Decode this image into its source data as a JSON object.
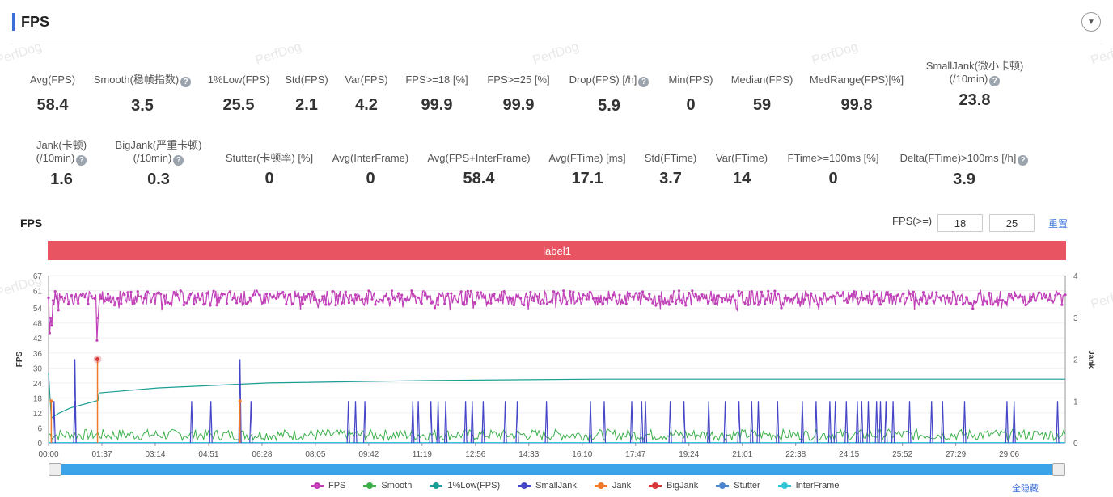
{
  "header": {
    "title": "FPS",
    "watermark": "PerfDog"
  },
  "metrics_row1": [
    {
      "label": "Avg(FPS)",
      "value": "58.4",
      "help": false
    },
    {
      "label": "Smooth(稳帧指数)",
      "value": "3.5",
      "help": true
    },
    {
      "label": "1%Low(FPS)",
      "value": "25.5",
      "help": false
    },
    {
      "label": "Std(FPS)",
      "value": "2.1",
      "help": false
    },
    {
      "label": "Var(FPS)",
      "value": "4.2",
      "help": false
    },
    {
      "label": "FPS>=18 [%]",
      "value": "99.9",
      "help": false
    },
    {
      "label": "FPS>=25 [%]",
      "value": "99.9",
      "help": false
    },
    {
      "label": "Drop(FPS) [/h]",
      "value": "5.9",
      "help": true
    },
    {
      "label": "Min(FPS)",
      "value": "0",
      "help": false
    },
    {
      "label": "Median(FPS)",
      "value": "59",
      "help": false
    },
    {
      "label": "MedRange(FPS)[%]",
      "value": "99.8",
      "help": false
    },
    {
      "label": "SmallJank(微小卡顿)",
      "label2": "(/10min)",
      "value": "23.8",
      "help": true
    }
  ],
  "metrics_row2": [
    {
      "label": "Jank(卡顿)",
      "label2": "(/10min)",
      "value": "1.6",
      "help": true
    },
    {
      "label": "BigJank(严重卡顿)",
      "label2": "(/10min)",
      "value": "0.3",
      "help": true
    },
    {
      "label": "Stutter(卡顿率) [%]",
      "value": "0",
      "help": false
    },
    {
      "label": "Avg(InterFrame)",
      "value": "0",
      "help": false
    },
    {
      "label": "Avg(FPS+InterFrame)",
      "value": "58.4",
      "help": false
    },
    {
      "label": "Avg(FTime) [ms]",
      "value": "17.1",
      "help": false
    },
    {
      "label": "Std(FTime)",
      "value": "3.7",
      "help": false
    },
    {
      "label": "Var(FTime)",
      "value": "14",
      "help": false
    },
    {
      "label": "FTime>=100ms [%]",
      "value": "0",
      "help": false
    },
    {
      "label": "Delta(FTime)>100ms [/h]",
      "value": "3.9",
      "help": true
    }
  ],
  "chart_panel": {
    "title": "FPS",
    "threshold_label": "FPS(>=)",
    "threshold1": "18",
    "threshold2": "25",
    "reset_label": "重置",
    "segment_label": "label1",
    "hide_all_label": "全隐藏"
  },
  "colors": {
    "fps": "#c040b8",
    "smooth": "#3bb04a",
    "low1": "#1a9e96",
    "smalljank": "#4646c8",
    "jank": "#f07a2a",
    "bigjank": "#d83a3a",
    "stutter": "#4a86d0",
    "interframe": "#2ec6d6",
    "label_bar": "#e85462",
    "accent": "#3b6fd8"
  },
  "chart_data": {
    "type": "line",
    "title": "",
    "xlabel": "",
    "ylabel": "FPS",
    "y2label": "Jank",
    "ylim": [
      0,
      67
    ],
    "y2lim": [
      0,
      4
    ],
    "yticks": [
      0,
      6,
      12,
      18,
      24,
      30,
      36,
      42,
      48,
      54,
      61,
      67
    ],
    "y2ticks": [
      0,
      1,
      2,
      3,
      4
    ],
    "duration_seconds": 1848,
    "xticks": [
      "00:00",
      "01:37",
      "03:14",
      "04:51",
      "06:28",
      "08:05",
      "09:42",
      "11:19",
      "12:56",
      "14:33",
      "16:10",
      "17:47",
      "19:24",
      "21:01",
      "22:38",
      "24:15",
      "25:52",
      "27:29",
      "29:06"
    ],
    "series": [
      {
        "name": "FPS",
        "description": "oscillates between about 54 and 61, dips near 00:00-00:10 (44), 01:30 (41), 05:45 (48)",
        "baseline_min": 54,
        "baseline_max": 61
      },
      {
        "name": "Smooth",
        "description": "noisy, approx 0-6",
        "baseline_min": 0,
        "baseline_max": 6
      },
      {
        "name": "1%Low(FPS)",
        "points": [
          [
            0,
            28
          ],
          [
            5,
            10
          ],
          [
            20,
            12
          ],
          [
            40,
            14
          ],
          [
            90,
            17
          ],
          [
            92,
            20
          ],
          [
            200,
            22
          ],
          [
            400,
            24
          ],
          [
            700,
            25
          ],
          [
            1000,
            25.5
          ],
          [
            1848,
            25.5
          ]
        ]
      },
      {
        "name": "SmallJank",
        "spikes_seconds": [
          10,
          48,
          260,
          295,
          368,
          545,
          558,
          575,
          662,
          672,
          695,
          708,
          722,
          758,
          770,
          790,
          830,
          852,
          905,
          985,
          1010,
          1060,
          1078,
          1085,
          1130,
          1155,
          1200,
          1230,
          1255,
          1278,
          1290,
          1325,
          1370,
          1395,
          1420,
          1430,
          1450,
          1470,
          1478,
          1490,
          1505,
          1512,
          1522,
          1535,
          1565,
          1605,
          1625,
          1665,
          1742,
          1755,
          1834
        ],
        "spike_value": 1
      },
      {
        "name": "SmallJank-large",
        "points": [
          [
            48,
            2
          ],
          [
            348,
            2
          ]
        ]
      },
      {
        "name": "Jank",
        "points": [
          [
            5,
            1
          ],
          [
            89,
            2
          ],
          [
            348,
            1
          ]
        ]
      },
      {
        "name": "BigJank",
        "points": [
          [
            89,
            2
          ]
        ]
      },
      {
        "name": "Stutter",
        "value": 0
      },
      {
        "name": "InterFrame",
        "value": 0
      }
    ],
    "legend": [
      "FPS",
      "Smooth",
      "1%Low(FPS)",
      "SmallJank",
      "Jank",
      "BigJank",
      "Stutter",
      "InterFrame"
    ],
    "legend_position": "bottom",
    "grid": true
  }
}
